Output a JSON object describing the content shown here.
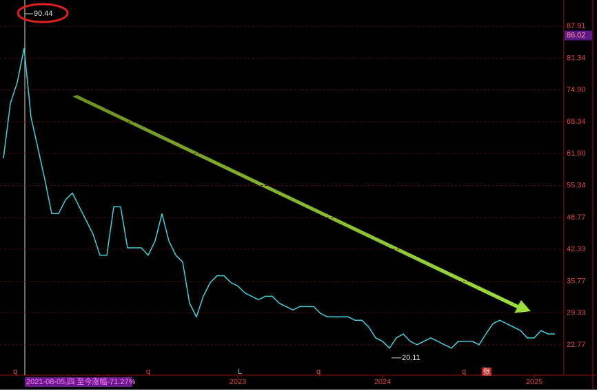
{
  "chart_data": {
    "type": "line",
    "categories": [
      null,
      null,
      null,
      null,
      null,
      null,
      null,
      null,
      null,
      null,
      null,
      null,
      null,
      null,
      null,
      null,
      null,
      null,
      null,
      null,
      null,
      null,
      null,
      null,
      null,
      null,
      null,
      null,
      null,
      null,
      null,
      null,
      null,
      null,
      "2023",
      null,
      null,
      null,
      null,
      null,
      null,
      null,
      null,
      null,
      null,
      null,
      null,
      null,
      null,
      null,
      null,
      null,
      null,
      null,
      null,
      "2024",
      null,
      null,
      null,
      null,
      null,
      null,
      null,
      null,
      null,
      null,
      null,
      null,
      null,
      null,
      null,
      null,
      null,
      null,
      null,
      null,
      null,
      "2025",
      null,
      null,
      null
    ],
    "series": [
      {
        "color": "#3fd3e0",
        "values": [
          60.9,
          72.1,
          76.4,
          83.4,
          69.3,
          63,
          56.6,
          49.6,
          49.6,
          52.4,
          53.8,
          51,
          48.2,
          45.4,
          41.1,
          41.1,
          51,
          51,
          42.6,
          42.6,
          42.6,
          41.1,
          44,
          49.6,
          44,
          41.1,
          39.7,
          31.3,
          28.5,
          32.7,
          35.5,
          36.9,
          36.9,
          35.5,
          34.8,
          33.4,
          32.7,
          32,
          32.7,
          32.7,
          31.3,
          30.6,
          29.9,
          30.6,
          30.6,
          30.6,
          29.2,
          28.5,
          28.5,
          28.5,
          28.5,
          27.8,
          27.8,
          26.4,
          24.2,
          23.5,
          22.1,
          24.2,
          25,
          23.5,
          22.8,
          23.5,
          24.2,
          23.5,
          22.8,
          22.1,
          23.5,
          23.5,
          23.5,
          22.8,
          25,
          27.1,
          27.8,
          27.1,
          26.4,
          25.7,
          24.2,
          24.2,
          25.7,
          25,
          25
        ]
      }
    ],
    "ylim": [
      17.28,
      93.26
    ],
    "yticks": [
      87.91,
      81.34,
      {
        "value": 74.9,
        "label": "74.90"
      },
      68.34,
      {
        "value": 61.9,
        "label": "61.90"
      },
      55.34,
      48.77,
      42.33,
      35.77,
      29.33,
      22.77
    ],
    "grid": true,
    "high": 90.44,
    "low": 20.11,
    "cursor_price": 86.02,
    "cursor_info": "2021-08-05,四 至今涨幅-71.27%",
    "markers": [
      "q",
      "q",
      "L",
      "q",
      "q",
      "张"
    ]
  }
}
